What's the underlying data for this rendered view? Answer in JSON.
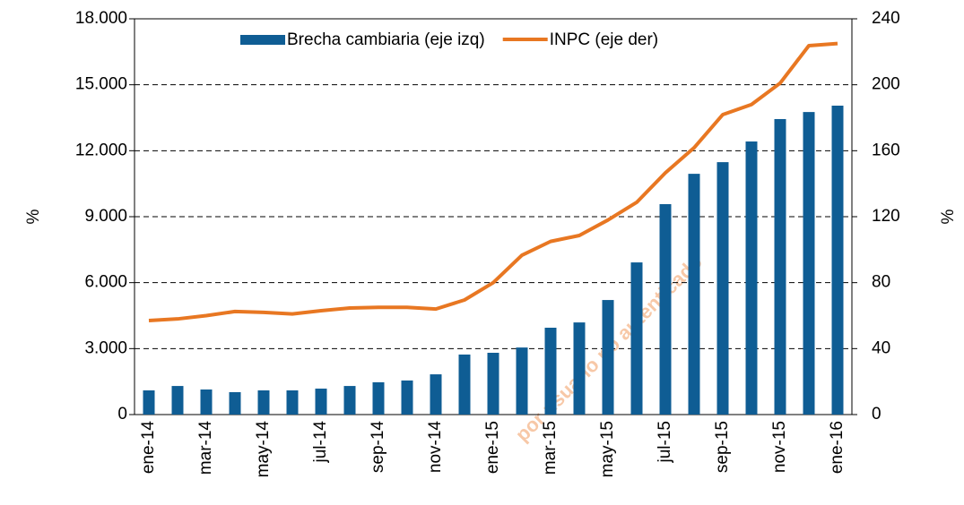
{
  "chart_data": {
    "type": "bar_line",
    "categories": [
      "ene-14",
      null,
      "mar-14",
      null,
      "may-14",
      null,
      "jul-14",
      null,
      "sep-14",
      null,
      "nov-14",
      null,
      "ene-15",
      null,
      "mar-15",
      null,
      "may-15",
      null,
      "jul-15",
      null,
      "sep-15",
      null,
      "nov-15",
      null,
      "ene-16"
    ],
    "series": [
      {
        "name": "Brecha cambiaria (eje izq)",
        "color": "#0f5d94",
        "type": "bar",
        "values": [
          1100,
          1300,
          1140,
          1020,
          1100,
          1100,
          1180,
          1300,
          1470,
          1550,
          1830,
          2730,
          2810,
          3050,
          3950,
          4190,
          5210,
          6920,
          9570,
          10950,
          11480,
          12420,
          13440,
          13760,
          14050
        ]
      },
      {
        "name": "INPC (eje der)",
        "color": "#e87722",
        "type": "line",
        "axis": "y2",
        "values": [
          57,
          58,
          60,
          62.5,
          62,
          61,
          63,
          64.6,
          65,
          65,
          64,
          69.5,
          80,
          96.6,
          105,
          108.6,
          118,
          128.7,
          146.6,
          161.8,
          181.9,
          188,
          201,
          223.7,
          225
        ]
      }
    ],
    "ylabel": "%",
    "y2label": "%",
    "ylim": [
      0,
      18000
    ],
    "yticks": [
      0,
      {
        "value": 3000,
        "label": "3.000"
      },
      {
        "value": 6000,
        "label": "6.000"
      },
      {
        "value": 9000,
        "label": "9.000"
      },
      {
        "value": 12000,
        "label": "12.000"
      },
      {
        "value": 15000,
        "label": "15.000"
      },
      {
        "value": 18000,
        "label": "18.000"
      }
    ],
    "y2lim": [
      0,
      240
    ],
    "y2ticks": [
      0,
      40,
      80,
      120,
      160,
      200,
      240
    ],
    "grid": true,
    "legend": "top",
    "watermark": "por usuario no autenticado"
  }
}
